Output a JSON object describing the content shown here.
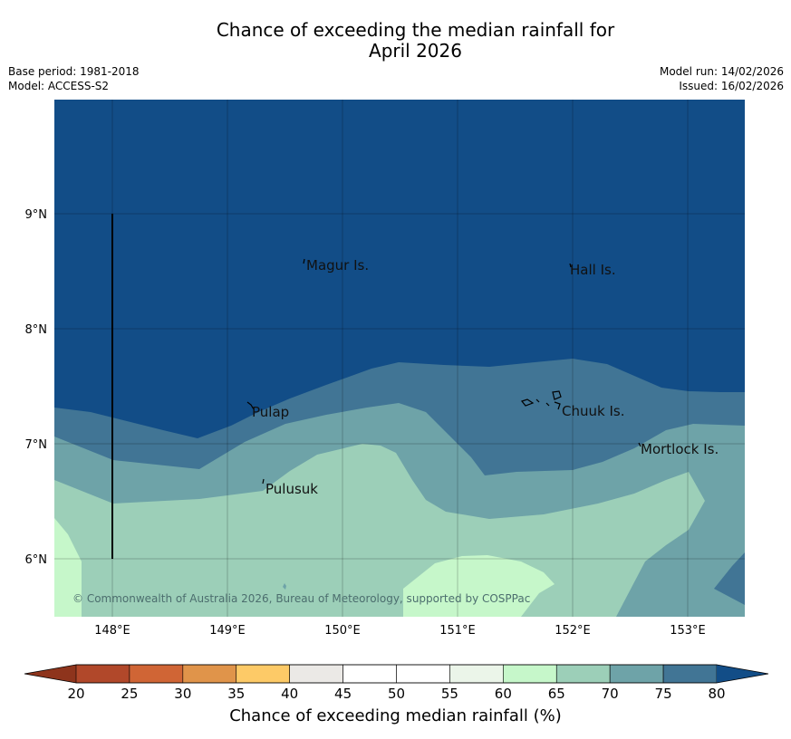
{
  "title_line1": "Chance of exceeding the median rainfall for",
  "title_line2": "April 2026",
  "meta_left": {
    "base_period": "Base period: 1981-2018",
    "model": "Model: ACCESS-S2"
  },
  "meta_right": {
    "model_run": "Model run: 14/02/2026",
    "issued": "Issued: 16/02/2026"
  },
  "map": {
    "lon_ticks": [
      "148°E",
      "149°E",
      "150°E",
      "151°E",
      "152°E",
      "153°E"
    ],
    "lat_ticks": [
      "9°N",
      "8°N",
      "7°N",
      "6°N"
    ],
    "places": [
      "Magur Is.",
      "Hall Is.",
      "Pulap",
      "Chuuk Is.",
      "Mortlock Is.",
      "Pulusuk"
    ],
    "copyright": "© Commonwealth of Australia 2026, Bureau of Meteorology, supported by COSPPac"
  },
  "colorbar": {
    "ticks": [
      "20",
      "25",
      "30",
      "35",
      "40",
      "45",
      "50",
      "55",
      "60",
      "65",
      "70",
      "75",
      "80"
    ],
    "colors": [
      "#b1482a",
      "#d06535",
      "#e0944a",
      "#fdca67",
      "#ebe9e6",
      "#ffffff",
      "#ffffff",
      "#ebf5e9",
      "#c6f7ca",
      "#9ccfb8",
      "#6ea3a8",
      "#417595",
      "#124d87"
    ],
    "under_color": "#8e341c",
    "label": "Chance of exceeding median rainfall (%)"
  }
}
